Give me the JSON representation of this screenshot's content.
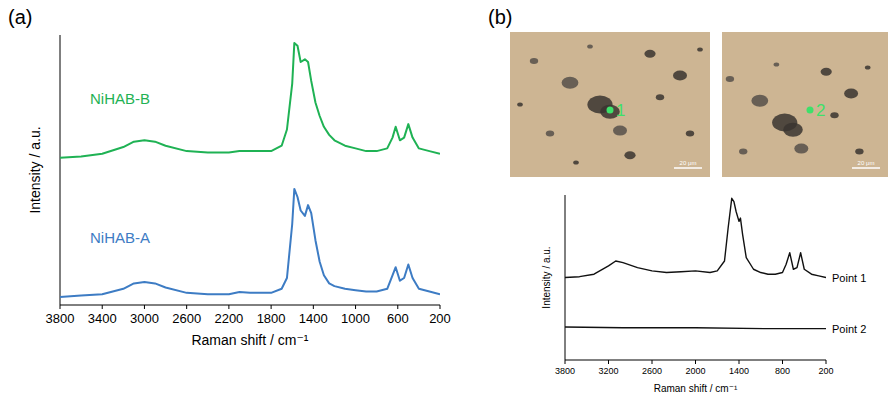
{
  "chart_data": [
    {
      "type": "line",
      "panel": "(a)",
      "x_label": "Raman shift / cm⁻¹",
      "y_label": "Intensity / a.u.",
      "xlim": [
        3800,
        200
      ],
      "xticks": [
        3800,
        3400,
        3000,
        2600,
        2200,
        1800,
        1400,
        1000,
        600,
        200
      ],
      "ylim": [
        0,
        100
      ],
      "tick_labels": "x",
      "grid": false,
      "series": [
        {
          "name": "NiHAB-B",
          "color": "#1fb254",
          "x": [
            3800,
            3600,
            3400,
            3200,
            3100,
            3000,
            2900,
            2800,
            2600,
            2400,
            2200,
            2100,
            2000,
            1800,
            1700,
            1650,
            1600,
            1580,
            1550,
            1520,
            1480,
            1450,
            1420,
            1380,
            1340,
            1300,
            1250,
            1200,
            1100,
            1000,
            900,
            800,
            700,
            650,
            620,
            580,
            540,
            500,
            460,
            400,
            300,
            200
          ],
          "values": [
            54.5,
            55,
            56,
            58.5,
            60.5,
            61,
            60.5,
            59,
            57,
            56.5,
            56.5,
            57,
            57,
            57,
            59,
            65,
            82,
            97,
            96,
            90,
            91,
            90,
            83,
            75,
            70,
            66,
            63,
            61,
            59,
            58,
            57,
            57,
            58,
            62,
            66,
            61,
            62,
            67,
            62,
            58,
            57,
            56
          ]
        },
        {
          "name": "NiHAB-A",
          "color": "#3d7cc4",
          "x": [
            3800,
            3600,
            3400,
            3200,
            3100,
            3000,
            2900,
            2800,
            2600,
            2400,
            2200,
            2100,
            2000,
            1800,
            1700,
            1650,
            1600,
            1580,
            1550,
            1520,
            1480,
            1450,
            1420,
            1380,
            1340,
            1300,
            1250,
            1200,
            1100,
            1000,
            900,
            800,
            700,
            650,
            620,
            580,
            540,
            500,
            460,
            400,
            300,
            200
          ],
          "values": [
            3,
            3.5,
            4,
            6,
            8,
            8.5,
            8,
            6.5,
            4.5,
            4,
            4,
            4.8,
            4.5,
            4.5,
            6,
            10,
            30,
            43,
            40,
            35,
            33,
            37,
            34,
            24,
            16,
            11,
            8,
            7,
            6,
            5.5,
            5,
            5,
            6,
            11,
            14,
            9,
            10,
            15,
            10,
            6,
            5,
            4
          ]
        }
      ]
    },
    {
      "type": "line",
      "panel": "(b)",
      "x_label": "Raman shift / cm⁻¹",
      "y_label": "Intensity / a.u.",
      "xlim": [
        3800,
        200
      ],
      "xticks": [
        3800,
        3200,
        2600,
        2000,
        1400,
        800,
        200
      ],
      "ylim": [
        0,
        100
      ],
      "tick_labels": "x",
      "grid": false,
      "series": [
        {
          "name": "Point 1",
          "color": "#111111",
          "x": [
            3800,
            3600,
            3400,
            3200,
            3100,
            3000,
            2800,
            2600,
            2400,
            2200,
            2000,
            1800,
            1700,
            1600,
            1550,
            1500,
            1470,
            1440,
            1400,
            1380,
            1350,
            1300,
            1200,
            1100,
            1000,
            900,
            800,
            750,
            700,
            650,
            600,
            550,
            500,
            400,
            300,
            200
          ],
          "values": [
            50,
            50.5,
            52,
            57,
            60,
            59,
            56,
            54,
            53,
            53.5,
            54,
            53,
            54,
            60,
            80,
            98,
            96,
            90,
            84,
            86,
            76,
            62,
            55,
            53,
            52,
            52,
            53,
            58,
            65,
            55,
            56,
            65,
            55,
            52,
            51,
            50
          ]
        },
        {
          "name": "Point 2",
          "color": "#111111",
          "x": [
            3800,
            3000,
            2000,
            1000,
            200
          ],
          "values": [
            20,
            19.5,
            19.5,
            19,
            19
          ]
        }
      ]
    }
  ],
  "micrographs": [
    {
      "point_label": "1",
      "scale_bar": "20 μm"
    },
    {
      "point_label": "2",
      "scale_bar": "20 μm"
    }
  ]
}
